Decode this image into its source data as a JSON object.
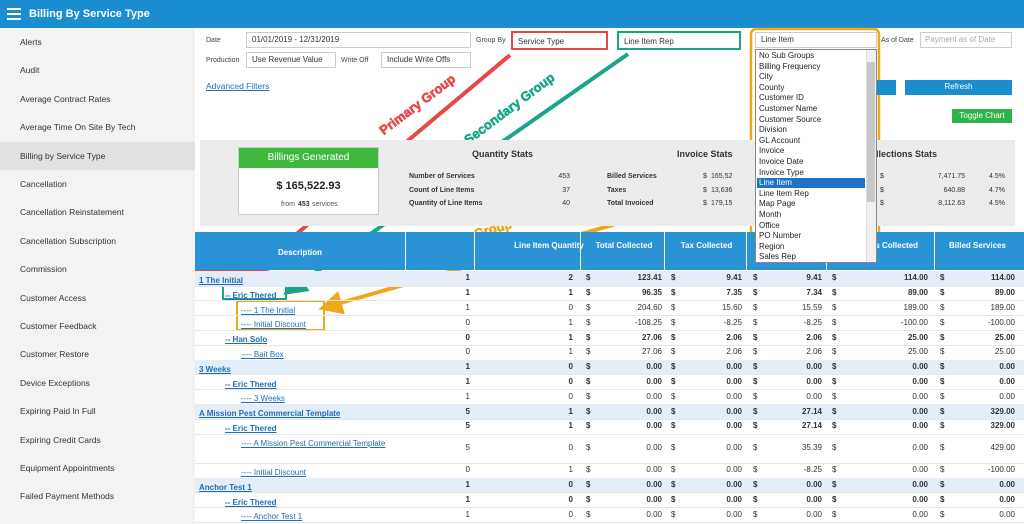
{
  "header": {
    "title": "Billing By Service Type"
  },
  "sidebar": {
    "items": [
      "Alerts",
      "Audit",
      "Average Contract Rates",
      "Average Time On Site By Tech",
      "Billing by Service Type",
      "Cancellation",
      "Cancellation Reinstatement",
      "Cancellation Subscription",
      "Commission",
      "Customer Access",
      "Customer Feedback",
      "Customer Restore",
      "Device Exceptions",
      "Expiring Paid In Full",
      "Expiring Credit Cards",
      "Equipment Appointments",
      "Failed Payment Methods"
    ],
    "active": 4
  },
  "filters": {
    "date_label": "Date",
    "date_value": "01/01/2019 - 12/31/2019",
    "group_by_label": "Group By",
    "group_by": "Service Type",
    "secondary_group": "Line Item Rep",
    "tertiary_group": "Line Item",
    "as_of_label": "As of Date",
    "as_of_placeholder": "Payment as of Date",
    "production_label": "Production",
    "production_value": "Use Revenue Value",
    "write_off_label": "Write Off",
    "write_off_value": "Include Write Offs",
    "advanced_filters": "Advanced Filters",
    "refresh": "Refresh",
    "toggle_chart": "Toggle Chart"
  },
  "dropdown": {
    "options": [
      "No Sub Groups",
      "Billing Frequency",
      "City",
      "County",
      "Customer ID",
      "Customer Name",
      "Customer Source",
      "Division",
      "GL Account",
      "Invoice",
      "Invoice Date",
      "Invoice Type",
      "Line Item",
      "Line Item Rep",
      "Map Page",
      "Month",
      "Office",
      "PO Number",
      "Region",
      "Sales Rep"
    ],
    "selected": 12
  },
  "currency": "$",
  "stats": {
    "billings_title": "Billings Generated",
    "billings_value": "$ 165,522.93",
    "billings_from": "from",
    "billings_count": "453",
    "billings_services": "services",
    "quantity": {
      "title": "Quantity Stats",
      "rows": [
        [
          "Number of Services",
          "453"
        ],
        [
          "Count of Line Items",
          "37"
        ],
        [
          "Quantity of Line Items",
          "40"
        ]
      ]
    },
    "invoice": {
      "title": "Invoice Stats",
      "rows": [
        [
          "Billed Services",
          "165,52"
        ],
        [
          "Taxes",
          "13,636"
        ],
        [
          "Total Invoiced",
          "179,15"
        ]
      ]
    },
    "collections": {
      "title": "Collections Stats",
      "rows": [
        [
          "7,471.75",
          "4.5%"
        ],
        [
          "640.88",
          "4.7%"
        ],
        [
          "8,112.63",
          "4.5%"
        ]
      ]
    }
  },
  "annotations": [
    "Primary Group",
    "Secondary Group",
    "Tertiary Group"
  ],
  "table": {
    "headers": [
      "Description",
      "Line Item Quantity",
      "Total Collected",
      "Tax Collected",
      "Payments Collected",
      "Billed Services"
    ],
    "rows": [
      [
        "1 The Initial",
        "1",
        "2",
        "123.41",
        "9.41",
        "9.41",
        "114.00",
        "114.00"
      ],
      [
        "-- Eric Thered",
        "1",
        "1",
        "96.35",
        "7.35",
        "7.34",
        "89.00",
        "89.00"
      ],
      [
        "---- 1 The Initial",
        "1",
        "0",
        "204.60",
        "15.60",
        "15.59",
        "189.00",
        "189.00"
      ],
      [
        "---- Initial Discount",
        "0",
        "1",
        "-108.25",
        "-8.25",
        "-8.25",
        "-100.00",
        "-100.00"
      ],
      [
        "-- Han Solo",
        "0",
        "1",
        "27.06",
        "2.06",
        "2.06",
        "25.00",
        "25.00"
      ],
      [
        "---- Bait Box",
        "0",
        "1",
        "27.06",
        "2.06",
        "2.06",
        "25.00",
        "25.00"
      ],
      [
        "3 Weeks",
        "1",
        "0",
        "0.00",
        "0.00",
        "0.00",
        "0.00",
        "0.00"
      ],
      [
        "-- Eric Thered",
        "1",
        "0",
        "0.00",
        "0.00",
        "0.00",
        "0.00",
        "0.00"
      ],
      [
        "---- 3 Weeks",
        "1",
        "0",
        "0.00",
        "0.00",
        "0.00",
        "0.00",
        "0.00"
      ],
      [
        "A Mission Pest Commercial Template",
        "5",
        "1",
        "0.00",
        "0.00",
        "27.14",
        "0.00",
        "329.00"
      ],
      [
        "-- Eric Thered",
        "5",
        "1",
        "0.00",
        "0.00",
        "27.14",
        "0.00",
        "329.00"
      ],
      [
        "---- A Mission Pest Commercial Template",
        "5",
        "0",
        "0.00",
        "0.00",
        "35.39",
        "0.00",
        "429.00"
      ],
      [
        "---- Initial Discount",
        "0",
        "1",
        "0.00",
        "0.00",
        "-8.25",
        "0.00",
        "-100.00"
      ],
      [
        "Anchor Test 1",
        "1",
        "0",
        "0.00",
        "0.00",
        "0.00",
        "0.00",
        "0.00"
      ],
      [
        "-- Eric Thered",
        "1",
        "0",
        "0.00",
        "0.00",
        "0.00",
        "0.00",
        "0.00"
      ],
      [
        "---- Anchor Test 1",
        "1",
        "0",
        "0.00",
        "0.00",
        "0.00",
        "0.00",
        "0.00"
      ]
    ]
  }
}
